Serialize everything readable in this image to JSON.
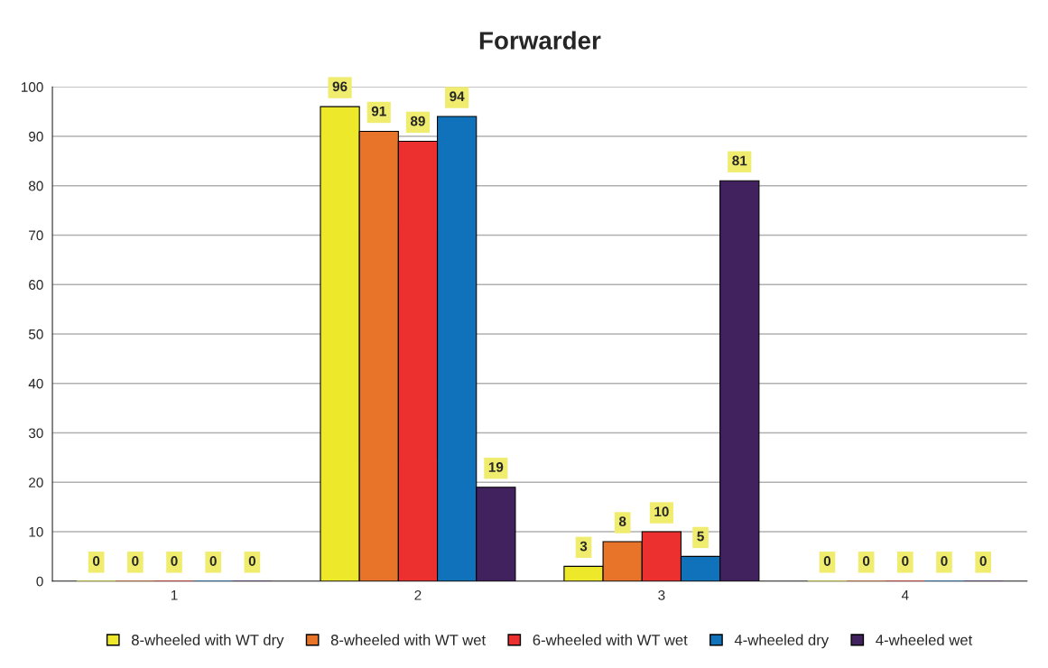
{
  "chart_data": {
    "type": "bar",
    "title": "Forwarder",
    "categories": [
      "1",
      "2",
      "3",
      "4"
    ],
    "series": [
      {
        "name": "8-wheeled with WT dry",
        "color": "#ede82a",
        "values": [
          0,
          96,
          3,
          0
        ]
      },
      {
        "name": "8-wheeled with WT wet",
        "color": "#e8742a",
        "values": [
          0,
          91,
          8,
          0
        ]
      },
      {
        "name": "6-wheeled with WT wet",
        "color": "#ec3030",
        "values": [
          0,
          89,
          10,
          0
        ]
      },
      {
        "name": "4-wheeled dry",
        "color": "#0f72ba",
        "values": [
          0,
          94,
          5,
          0
        ]
      },
      {
        "name": "4-wheeled wet",
        "color": "#42215f",
        "values": [
          0,
          19,
          81,
          0
        ]
      }
    ],
    "ylim": [
      0,
      100
    ],
    "yticks": [
      0,
      10,
      20,
      30,
      40,
      50,
      60,
      70,
      80,
      90,
      100
    ],
    "grid": "y",
    "legend": "bottom",
    "data_labels": true
  }
}
